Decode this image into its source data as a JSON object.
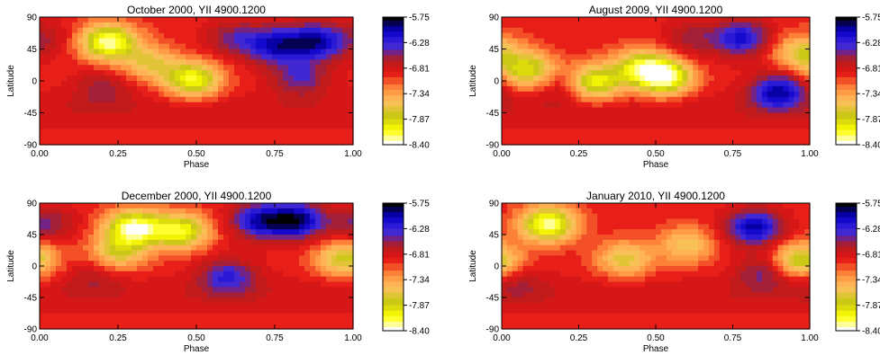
{
  "chart_data": {
    "type": "heatmap",
    "panels": [
      {
        "title": "October 2000, YII 4900.1200",
        "xlabel": "Phase",
        "ylabel": "Latitude",
        "xlim": [
          0,
          1
        ],
        "ylim": [
          -90,
          90
        ],
        "xticks": [
          "0.00",
          "0.25",
          "0.50",
          "0.75",
          "1.00"
        ],
        "yticks": [
          "90",
          "45",
          "0",
          "-45",
          "-90"
        ],
        "features": [
          {
            "phase": 0.22,
            "lat": 55,
            "value": -8.3
          },
          {
            "phase": 0.49,
            "lat": 2,
            "value": -8.1
          },
          {
            "phase": 0.35,
            "lat": 25,
            "value": -7.6
          },
          {
            "phase": 0.02,
            "lat": 60,
            "value": -6.7
          },
          {
            "phase": 0.75,
            "lat": 50,
            "value": -6.1
          },
          {
            "phase": 0.88,
            "lat": 55,
            "value": -6.0
          },
          {
            "phase": 0.83,
            "lat": 5,
            "value": -6.4
          },
          {
            "phase": 0.2,
            "lat": -10,
            "value": -6.6
          },
          {
            "phase": 0.62,
            "lat": 60,
            "value": -6.5
          }
        ]
      },
      {
        "title": "August 2009, YII 4900.1200",
        "xlabel": "Phase",
        "ylabel": "Latitude",
        "xlim": [
          0,
          1
        ],
        "ylim": [
          -90,
          90
        ],
        "xticks": [
          "0.00",
          "0.25",
          "0.50",
          "0.75",
          "1.00"
        ],
        "yticks": [
          "90",
          "45",
          "0",
          "-45",
          "-90"
        ],
        "features": [
          {
            "phase": 0.53,
            "lat": 5,
            "value": -8.3
          },
          {
            "phase": 0.3,
            "lat": -2,
            "value": -8.1
          },
          {
            "phase": 0.09,
            "lat": 15,
            "value": -7.95
          },
          {
            "phase": 0.45,
            "lat": 20,
            "value": -7.9
          },
          {
            "phase": 0.97,
            "lat": 40,
            "value": -7.7
          },
          {
            "phase": 0.9,
            "lat": -15,
            "value": -6.0
          },
          {
            "phase": 0.78,
            "lat": 60,
            "value": -6.15
          },
          {
            "phase": 0.2,
            "lat": -5,
            "value": -6.6
          },
          {
            "phase": 0.62,
            "lat": 60,
            "value": -6.6
          }
        ]
      },
      {
        "title": "December 2000, YII 4900.1200",
        "xlabel": "Phase",
        "ylabel": "Latitude",
        "xlim": [
          0,
          1
        ],
        "ylim": [
          -90,
          90
        ],
        "xticks": [
          "0.00",
          "0.25",
          "0.50",
          "0.75",
          "1.00"
        ],
        "yticks": [
          "90",
          "45",
          "0",
          "-45",
          "-90"
        ],
        "features": [
          {
            "phase": 0.3,
            "lat": 55,
            "value": -8.3
          },
          {
            "phase": 0.45,
            "lat": 50,
            "value": -8.1
          },
          {
            "phase": 0.25,
            "lat": 20,
            "value": -7.7
          },
          {
            "phase": 0.82,
            "lat": 65,
            "value": -5.9
          },
          {
            "phase": 0.7,
            "lat": 65,
            "value": -6.1
          },
          {
            "phase": 0.6,
            "lat": -15,
            "value": -6.3
          },
          {
            "phase": 0.02,
            "lat": 60,
            "value": -6.5
          },
          {
            "phase": 0.17,
            "lat": -15,
            "value": -6.7
          },
          {
            "phase": 0.97,
            "lat": 10,
            "value": -7.8
          }
        ]
      },
      {
        "title": "January 2010, YII 4900.1200",
        "xlabel": "Phase",
        "ylabel": "Latitude",
        "xlim": [
          0,
          1
        ],
        "ylim": [
          -90,
          90
        ],
        "xticks": [
          "0.00",
          "0.25",
          "0.50",
          "0.75",
          "1.00"
        ],
        "yticks": [
          "90",
          "45",
          "0",
          "-45",
          "-90"
        ],
        "features": [
          {
            "phase": 0.15,
            "lat": 60,
            "value": -8.3
          },
          {
            "phase": 0.82,
            "lat": 55,
            "value": -6.0
          },
          {
            "phase": 0.85,
            "lat": -10,
            "value": -6.5
          },
          {
            "phase": 0.05,
            "lat": -25,
            "value": -6.7
          },
          {
            "phase": 0.97,
            "lat": 8,
            "value": -7.9
          },
          {
            "phase": 0.4,
            "lat": 10,
            "value": -7.7
          },
          {
            "phase": 0.6,
            "lat": 30,
            "value": -7.6
          }
        ]
      }
    ],
    "colorbar": {
      "vmin": -8.4,
      "vmax": -5.75,
      "tick_labels": [
        "-5.75",
        "-6.28",
        "-6.81",
        "-7.34",
        "-7.87",
        "-8.40"
      ],
      "colors": [
        "#ffffff",
        "#ffff00",
        "#c8c814",
        "#ffc060",
        "#ff8c3c",
        "#e61414",
        "#b41e1e",
        "#3c28dc",
        "#0a00c8",
        "#000000"
      ]
    }
  }
}
